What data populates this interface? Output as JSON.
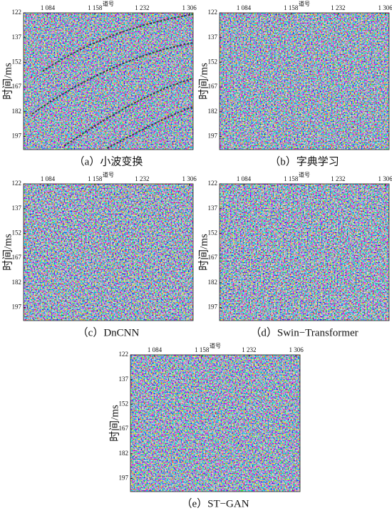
{
  "panels": [
    {
      "caption": "（a）小波变换",
      "xlabel": "道号",
      "ylabel": "时间/ms",
      "xticks": [
        {
          "value": 1084,
          "label": "1 084"
        },
        {
          "value": 1158,
          "label": "1 158"
        },
        {
          "value": 1232,
          "label": "1 232"
        },
        {
          "value": 1306,
          "label": "1 306"
        }
      ],
      "yticks": [
        122,
        137,
        152,
        167,
        182,
        197
      ]
    },
    {
      "caption": "（b）字典学习",
      "xlabel": "道号",
      "ylabel": "时间/ms",
      "xticks": [
        {
          "value": 1084,
          "label": "1 084"
        },
        {
          "value": 1158,
          "label": "1 158"
        },
        {
          "value": 1232,
          "label": "1 232"
        },
        {
          "value": 1306,
          "label": "1 306"
        }
      ],
      "yticks": [
        122,
        137,
        152,
        167,
        182,
        197
      ]
    },
    {
      "caption": "（c）DnCNN",
      "xlabel": "道号",
      "ylabel": "时间/ms",
      "xticks": [
        {
          "value": 1084,
          "label": "1 084"
        },
        {
          "value": 1158,
          "label": "1 158"
        },
        {
          "value": 1232,
          "label": "1 232"
        },
        {
          "value": 1306,
          "label": "1 306"
        }
      ],
      "yticks": [
        122,
        137,
        152,
        167,
        182,
        197
      ]
    },
    {
      "caption": "（d）Swin−Transformer",
      "xlabel": "道号",
      "ylabel": "时间/ms",
      "xticks": [
        {
          "value": 1084,
          "label": "1 084"
        },
        {
          "value": 1158,
          "label": "1 158"
        },
        {
          "value": 1232,
          "label": "1 232"
        },
        {
          "value": 1306,
          "label": "1 306"
        }
      ],
      "yticks": [
        122,
        137,
        152,
        167,
        182,
        197
      ]
    },
    {
      "caption": "（e）ST−GAN",
      "xlabel": "道号",
      "ylabel": "时间/ms",
      "xticks": [
        {
          "value": 1084,
          "label": "1 084"
        },
        {
          "value": 1158,
          "label": "1 158"
        },
        {
          "value": 1232,
          "label": "1 232"
        },
        {
          "value": 1306,
          "label": "1 306"
        }
      ],
      "yticks": [
        122,
        137,
        152,
        167,
        182,
        197
      ]
    }
  ]
}
